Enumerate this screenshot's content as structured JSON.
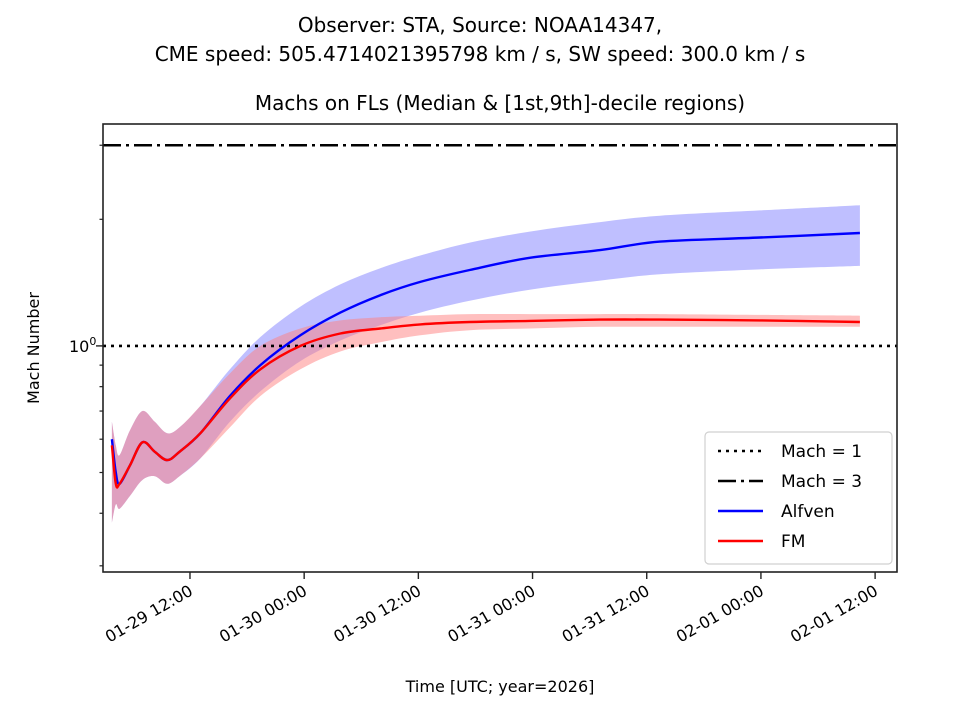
{
  "chart_data": {
    "type": "line",
    "suptitle_lines": [
      "Observer: STA, Source: NOAA14347,",
      "CME speed: 505.4714021395798 km / s, SW speed: 300.0 km / s"
    ],
    "title": "Machs on FLs (Median & [1st,9th]-decile regions)",
    "xlabel": "Time [UTC; year=2026]",
    "ylabel": "Mach Number",
    "yscale": "log",
    "ylim": [
      0.29,
      3.37
    ],
    "x_origin": "2026-01-29T00:00",
    "x_unit": "hours since x_origin",
    "xlim": [
      2.86,
      86.3
    ],
    "xticks": [
      {
        "hours": 12,
        "label": "01-29 12:00"
      },
      {
        "hours": 24,
        "label": "01-30 00:00"
      },
      {
        "hours": 36,
        "label": "01-30 12:00"
      },
      {
        "hours": 48,
        "label": "01-31 00:00"
      },
      {
        "hours": 60,
        "label": "01-31 12:00"
      },
      {
        "hours": 72,
        "label": "02-01 00:00"
      },
      {
        "hours": 84,
        "label": "02-01 12:00"
      }
    ],
    "yticks_major": [
      {
        "value": 1,
        "label": "10^0",
        "base": "10",
        "exp": "0"
      }
    ],
    "yticks_minor": [
      0.3,
      0.4,
      0.5,
      0.6,
      0.7,
      0.8,
      0.9,
      2,
      3
    ],
    "hlines": [
      {
        "name": "Mach = 1",
        "value": 1,
        "style": "dotted",
        "color": "#000000"
      },
      {
        "name": "Mach = 3",
        "value": 3,
        "style": "dashdot",
        "color": "#000000"
      }
    ],
    "series": [
      {
        "name": "Alfven",
        "color": "#0000ff",
        "band_color": "#8080ff",
        "x": [
          3.8,
          4.2,
          4.6,
          5.7,
          7.0,
          8.3,
          9.6,
          10.9,
          13.1,
          16.2,
          19.4,
          23.6,
          27.8,
          32.0,
          36.2,
          41.4,
          47.7,
          55.1,
          61.4,
          71.9,
          82.4
        ],
        "median": [
          0.6,
          0.5,
          0.47,
          0.52,
          0.59,
          0.56,
          0.535,
          0.56,
          0.62,
          0.76,
          0.9,
          1.06,
          1.2,
          1.32,
          1.42,
          1.515,
          1.62,
          1.69,
          1.77,
          1.81,
          1.855
        ],
        "decile_1": [
          0.38,
          0.42,
          0.41,
          0.44,
          0.48,
          0.49,
          0.47,
          0.49,
          0.54,
          0.66,
          0.78,
          0.92,
          1.03,
          1.12,
          1.2,
          1.28,
          1.36,
          1.43,
          1.48,
          1.52,
          1.55
        ],
        "decile_9": [
          0.66,
          0.58,
          0.55,
          0.63,
          0.7,
          0.66,
          0.62,
          0.64,
          0.72,
          0.88,
          1.05,
          1.24,
          1.4,
          1.53,
          1.64,
          1.76,
          1.87,
          1.97,
          2.04,
          2.1,
          2.16
        ]
      },
      {
        "name": "FM",
        "color": "#ff0000",
        "band_color": "#ff8080",
        "x": [
          3.8,
          4.2,
          4.6,
          5.7,
          7.0,
          8.3,
          9.6,
          10.9,
          13.1,
          16.2,
          19.4,
          23.6,
          27.8,
          32.0,
          36.2,
          41.4,
          47.7,
          55.1,
          61.4,
          71.9,
          82.4
        ],
        "median": [
          0.58,
          0.47,
          0.47,
          0.52,
          0.59,
          0.56,
          0.535,
          0.56,
          0.62,
          0.75,
          0.88,
          1.0,
          1.07,
          1.1,
          1.125,
          1.14,
          1.147,
          1.155,
          1.155,
          1.15,
          1.14
        ],
        "decile_1": [
          0.38,
          0.42,
          0.41,
          0.44,
          0.48,
          0.49,
          0.47,
          0.49,
          0.54,
          0.64,
          0.76,
          0.88,
          0.97,
          1.02,
          1.06,
          1.09,
          1.1,
          1.11,
          1.11,
          1.11,
          1.11
        ],
        "decile_9": [
          0.66,
          0.58,
          0.55,
          0.63,
          0.7,
          0.66,
          0.62,
          0.64,
          0.72,
          0.86,
          1.0,
          1.1,
          1.15,
          1.17,
          1.18,
          1.19,
          1.19,
          1.19,
          1.19,
          1.185,
          1.18
        ]
      }
    ],
    "legend": {
      "location": "lower-right",
      "entries": [
        {
          "label": "Mach = 1",
          "style": "dotted",
          "color": "#000000"
        },
        {
          "label": "Mach = 3",
          "style": "dashdot",
          "color": "#000000"
        },
        {
          "label": "Alfven",
          "style": "solid",
          "color": "#0000ff"
        },
        {
          "label": "FM",
          "style": "solid",
          "color": "#ff0000"
        }
      ]
    },
    "grid": false
  }
}
